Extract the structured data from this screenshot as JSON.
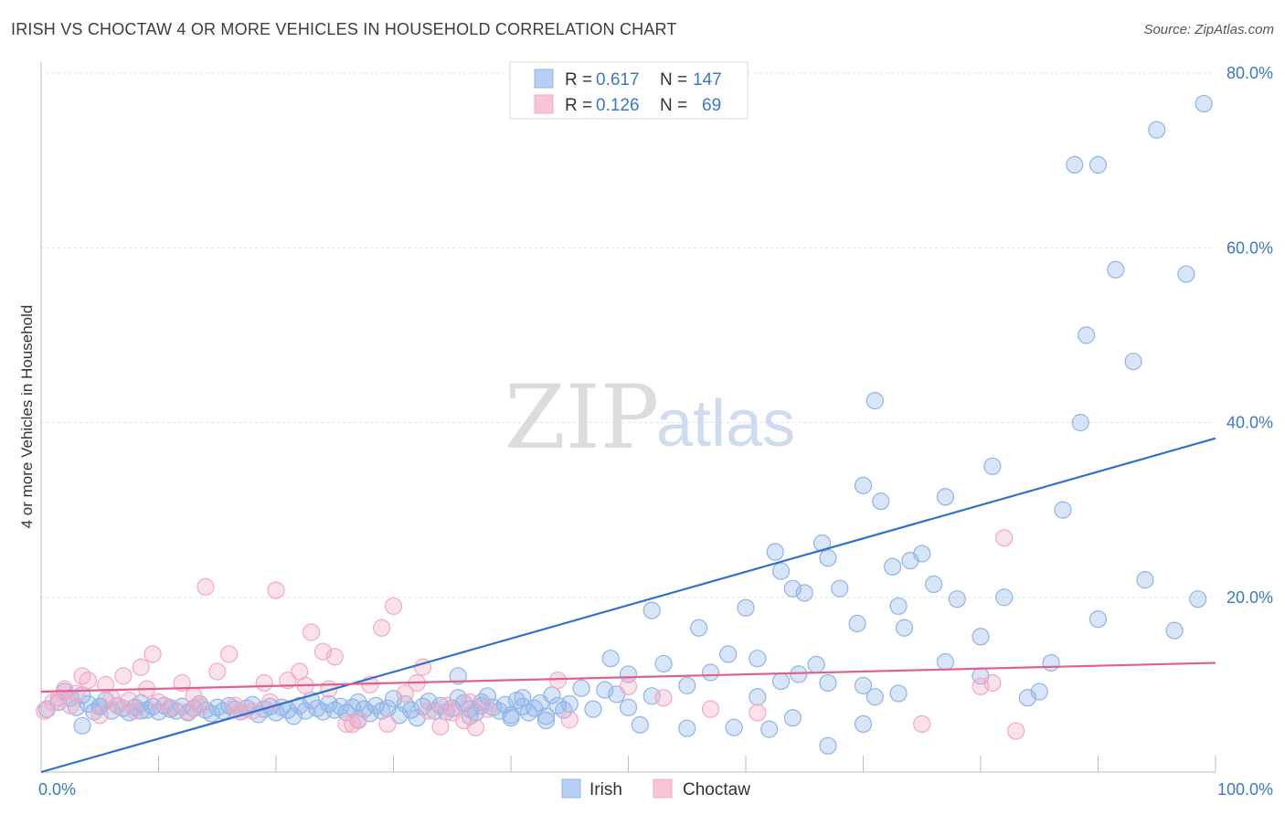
{
  "title": "IRISH VS CHOCTAW 4 OR MORE VEHICLES IN HOUSEHOLD CORRELATION CHART",
  "source": "Source: ZipAtlas.com",
  "watermark": {
    "zip": "ZIP",
    "atlas": "atlas"
  },
  "chart_data": {
    "type": "scatter",
    "title": "IRISH VS CHOCTAW 4 OR MORE VEHICLES IN HOUSEHOLD CORRELATION CHART",
    "xlabel": "",
    "ylabel": "4 or more Vehicles in Household",
    "xlim": [
      0,
      100
    ],
    "ylim": [
      0,
      80
    ],
    "x_tick_labels": [
      "0.0%",
      "100.0%"
    ],
    "y_tick_labels": [
      "20.0%",
      "40.0%",
      "60.0%",
      "80.0%"
    ],
    "y_ticks": [
      20,
      40,
      60,
      80
    ],
    "grid": true,
    "legend_position": "top-center",
    "stats": [
      {
        "r_label": "R = ",
        "r": "0.617",
        "n_label": "N = ",
        "n": "147"
      },
      {
        "r_label": "R = ",
        "r": "0.126",
        "n_label": "N = ",
        "n": "69"
      }
    ],
    "series": [
      {
        "name": "Irish",
        "color": "#8fb4e8",
        "line_color": "#2f72cc",
        "trend": [
          [
            0,
            0
          ],
          [
            100,
            38.2
          ]
        ],
        "points": [
          [
            0.5,
            7.2
          ],
          [
            1.5,
            8.0
          ],
          [
            2.0,
            9.2
          ],
          [
            2.5,
            8.5
          ],
          [
            3.0,
            7.4
          ],
          [
            3.5,
            8.8
          ],
          [
            4.0,
            7.8
          ],
          [
            4.5,
            6.9
          ],
          [
            5.0,
            7.5
          ],
          [
            5.5,
            8.2
          ],
          [
            6.0,
            7.0
          ],
          [
            6.5,
            7.6
          ],
          [
            7.0,
            7.3
          ],
          [
            7.5,
            6.8
          ],
          [
            8.0,
            7.4
          ],
          [
            8.5,
            7.9
          ],
          [
            9.0,
            7.1
          ],
          [
            9.5,
            7.5
          ],
          [
            10.0,
            6.9
          ],
          [
            10.5,
            7.6
          ],
          [
            11.0,
            7.2
          ],
          [
            11.5,
            7.0
          ],
          [
            12.0,
            7.5
          ],
          [
            12.5,
            6.8
          ],
          [
            13.0,
            7.3
          ],
          [
            13.5,
            7.8
          ],
          [
            14.0,
            7.1
          ],
          [
            14.5,
            6.7
          ],
          [
            15.0,
            7.4
          ],
          [
            15.5,
            7.0
          ],
          [
            16.0,
            7.6
          ],
          [
            16.5,
            7.2
          ],
          [
            17.0,
            6.9
          ],
          [
            17.5,
            7.3
          ],
          [
            18.0,
            7.7
          ],
          [
            18.5,
            6.6
          ],
          [
            19.0,
            7.2
          ],
          [
            19.5,
            7.5
          ],
          [
            20.0,
            6.8
          ],
          [
            20.5,
            7.4
          ],
          [
            21.0,
            7.1
          ],
          [
            21.5,
            6.4
          ],
          [
            22.0,
            7.6
          ],
          [
            22.5,
            7.0
          ],
          [
            23.0,
            8.2
          ],
          [
            23.5,
            7.3
          ],
          [
            24.0,
            6.9
          ],
          [
            24.5,
            7.8
          ],
          [
            25.0,
            7.1
          ],
          [
            25.5,
            7.5
          ],
          [
            26.0,
            6.8
          ],
          [
            26.5,
            7.4
          ],
          [
            27.0,
            8.0
          ],
          [
            27.5,
            7.2
          ],
          [
            28.0,
            6.7
          ],
          [
            28.5,
            7.6
          ],
          [
            29.0,
            7.0
          ],
          [
            29.5,
            7.3
          ],
          [
            30.0,
            8.4
          ],
          [
            30.5,
            6.5
          ],
          [
            31.0,
            7.8
          ],
          [
            31.5,
            7.1
          ],
          [
            32.0,
            6.2
          ],
          [
            32.5,
            7.5
          ],
          [
            33.0,
            8.1
          ],
          [
            33.5,
            7.0
          ],
          [
            34.0,
            7.6
          ],
          [
            34.5,
            6.9
          ],
          [
            35.0,
            7.3
          ],
          [
            35.5,
            8.5
          ],
          [
            36.0,
            7.9
          ],
          [
            36.5,
            7.2
          ],
          [
            37.0,
            6.8
          ],
          [
            37.5,
            7.6
          ],
          [
            38.0,
            8.7
          ],
          [
            38.5,
            7.4
          ],
          [
            39.0,
            7.0
          ],
          [
            39.5,
            7.7
          ],
          [
            40.0,
            6.5
          ],
          [
            40.5,
            8.2
          ],
          [
            41.0,
            7.5
          ],
          [
            41.5,
            6.8
          ],
          [
            42.0,
            7.3
          ],
          [
            42.5,
            7.9
          ],
          [
            43.0,
            6.4
          ],
          [
            43.5,
            8.8
          ],
          [
            44.0,
            7.6
          ],
          [
            44.5,
            7.1
          ],
          [
            45.0,
            7.8
          ],
          [
            46.0,
            9.6
          ],
          [
            47.0,
            7.2
          ],
          [
            48.0,
            9.4
          ],
          [
            49.0,
            8.9
          ],
          [
            50.0,
            7.4
          ],
          [
            3.5,
            5.3
          ],
          [
            27.0,
            6.0
          ],
          [
            36.5,
            6.4
          ],
          [
            40.0,
            6.2
          ],
          [
            43.0,
            5.9
          ],
          [
            51.0,
            5.4
          ],
          [
            55.0,
            5.0
          ],
          [
            59.0,
            5.1
          ],
          [
            62.0,
            4.9
          ],
          [
            64.0,
            6.2
          ],
          [
            67.0,
            3.0
          ],
          [
            70.0,
            5.5
          ],
          [
            5.0,
            7.5
          ],
          [
            8.5,
            7.0
          ],
          [
            35.5,
            11.0
          ],
          [
            37.5,
            8.0
          ],
          [
            41.0,
            8.5
          ],
          [
            48.5,
            13.0
          ],
          [
            50.0,
            11.2
          ],
          [
            52.0,
            8.7
          ],
          [
            53.0,
            12.4
          ],
          [
            55.0,
            9.9
          ],
          [
            57.0,
            11.4
          ],
          [
            61.0,
            8.6
          ],
          [
            63.0,
            10.4
          ],
          [
            64.5,
            11.2
          ],
          [
            67.0,
            10.2
          ],
          [
            66.0,
            12.3
          ],
          [
            70.0,
            9.9
          ],
          [
            71.0,
            8.6
          ],
          [
            73.0,
            9.0
          ],
          [
            77.0,
            12.6
          ],
          [
            80.0,
            11.0
          ],
          [
            52.0,
            18.5
          ],
          [
            56.0,
            16.5
          ],
          [
            58.5,
            13.5
          ],
          [
            60.0,
            18.8
          ],
          [
            61.0,
            13.0
          ],
          [
            62.5,
            25.2
          ],
          [
            63.0,
            23.0
          ],
          [
            64.0,
            21.0
          ],
          [
            65.0,
            20.5
          ],
          [
            66.5,
            26.2
          ],
          [
            67.0,
            24.5
          ],
          [
            68.0,
            21.0
          ],
          [
            69.5,
            17.0
          ],
          [
            70.0,
            32.8
          ],
          [
            71.5,
            31.0
          ],
          [
            72.5,
            23.5
          ],
          [
            73.0,
            19.0
          ],
          [
            73.5,
            16.5
          ],
          [
            74.0,
            24.2
          ],
          [
            75.0,
            25.0
          ],
          [
            76.0,
            21.5
          ],
          [
            77.0,
            31.5
          ],
          [
            78.0,
            19.8
          ],
          [
            80.0,
            15.5
          ],
          [
            81.0,
            35.0
          ],
          [
            82.0,
            20.0
          ],
          [
            84.0,
            8.5
          ],
          [
            85.0,
            9.2
          ],
          [
            86.0,
            12.5
          ],
          [
            87.0,
            30.0
          ],
          [
            88.5,
            40.0
          ],
          [
            89.0,
            50.0
          ],
          [
            90.0,
            17.5
          ],
          [
            91.5,
            57.5
          ],
          [
            93.0,
            47.0
          ],
          [
            94.0,
            22.0
          ],
          [
            95.0,
            73.5
          ],
          [
            96.5,
            16.2
          ],
          [
            97.5,
            57.0
          ],
          [
            98.5,
            19.8
          ],
          [
            99.0,
            76.5
          ],
          [
            71.0,
            42.5
          ],
          [
            88.0,
            69.5
          ],
          [
            90.0,
            69.5
          ]
        ]
      },
      {
        "name": "Choctaw",
        "color": "#f4a8c2",
        "line_color": "#e0608e",
        "trend": [
          [
            0,
            9.2
          ],
          [
            100,
            12.5
          ]
        ],
        "points": [
          [
            0.3,
            7.0
          ],
          [
            1.0,
            8.0
          ],
          [
            1.5,
            8.5
          ],
          [
            2.0,
            9.5
          ],
          [
            2.5,
            7.6
          ],
          [
            3.0,
            9.0
          ],
          [
            3.5,
            11.0
          ],
          [
            4.0,
            10.5
          ],
          [
            5.0,
            6.5
          ],
          [
            5.5,
            10.0
          ],
          [
            6.0,
            8.5
          ],
          [
            6.5,
            7.6
          ],
          [
            7.0,
            11.0
          ],
          [
            7.5,
            8.2
          ],
          [
            8.0,
            7.0
          ],
          [
            8.5,
            12.0
          ],
          [
            9.0,
            9.5
          ],
          [
            9.5,
            13.5
          ],
          [
            10.0,
            8.0
          ],
          [
            11.0,
            7.4
          ],
          [
            12.0,
            10.2
          ],
          [
            12.5,
            6.9
          ],
          [
            13.0,
            8.7
          ],
          [
            13.5,
            7.5
          ],
          [
            14.0,
            21.2
          ],
          [
            15.0,
            11.5
          ],
          [
            16.0,
            13.5
          ],
          [
            16.5,
            7.6
          ],
          [
            17.0,
            6.9
          ],
          [
            18.0,
            7.0
          ],
          [
            19.0,
            10.2
          ],
          [
            19.5,
            8.0
          ],
          [
            20.0,
            20.8
          ],
          [
            21.0,
            10.5
          ],
          [
            22.0,
            11.5
          ],
          [
            22.5,
            9.9
          ],
          [
            23.0,
            16.0
          ],
          [
            24.0,
            13.8
          ],
          [
            24.5,
            9.5
          ],
          [
            25.0,
            13.2
          ],
          [
            26.0,
            5.5
          ],
          [
            26.5,
            5.5
          ],
          [
            27.0,
            5.9
          ],
          [
            28.0,
            10.0
          ],
          [
            29.0,
            16.5
          ],
          [
            29.5,
            5.5
          ],
          [
            30.0,
            19.0
          ],
          [
            31.0,
            9.0
          ],
          [
            32.0,
            10.2
          ],
          [
            32.5,
            12.0
          ],
          [
            33.0,
            7.0
          ],
          [
            34.0,
            5.2
          ],
          [
            34.5,
            7.6
          ],
          [
            35.0,
            6.8
          ],
          [
            36.0,
            5.9
          ],
          [
            36.5,
            8.0
          ],
          [
            37.0,
            5.1
          ],
          [
            38.0,
            7.2
          ],
          [
            44.0,
            10.5
          ],
          [
            45.0,
            6.0
          ],
          [
            50.0,
            9.8
          ],
          [
            53.0,
            8.5
          ],
          [
            57.0,
            7.2
          ],
          [
            61.0,
            6.8
          ],
          [
            75.0,
            5.5
          ],
          [
            80.0,
            9.8
          ],
          [
            81.0,
            10.2
          ],
          [
            82.0,
            26.8
          ],
          [
            83.0,
            4.7
          ]
        ]
      }
    ]
  }
}
